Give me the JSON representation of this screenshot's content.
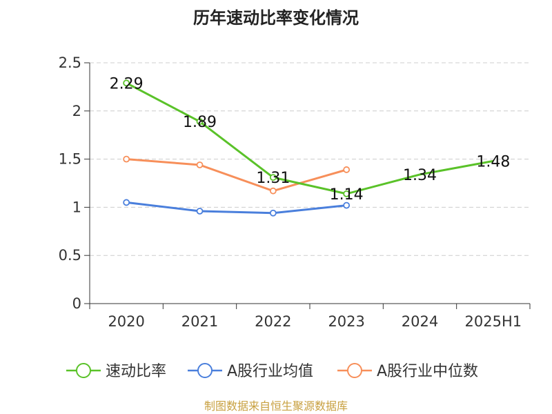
{
  "chart_data": {
    "type": "line",
    "title": "历年速动比率变化情况",
    "categories": [
      "2020",
      "2021",
      "2022",
      "2023",
      "2024",
      "2025H1"
    ],
    "ylim": [
      0,
      2.5
    ],
    "yticks": [
      "0",
      "0.5",
      "1",
      "1.5",
      "2",
      "2.5"
    ],
    "grid": true,
    "legend_position": "bottom",
    "series": [
      {
        "name": "速动比率",
        "color": "#5ac229",
        "values": [
          2.29,
          1.89,
          1.31,
          1.14,
          1.34,
          1.48
        ],
        "labels": [
          "2.29",
          "1.89",
          "1.31",
          "1.14",
          "1.34",
          "1.48"
        ],
        "markers": [
          true,
          true,
          true,
          true,
          false,
          false
        ]
      },
      {
        "name": "A股行业均值",
        "color": "#4a7fdc",
        "values": [
          1.05,
          0.96,
          0.94,
          1.02,
          null,
          null
        ],
        "markers": [
          true,
          true,
          true,
          true,
          false,
          false
        ]
      },
      {
        "name": "A股行业中位数",
        "color": "#f78f5a",
        "values": [
          1.5,
          1.44,
          1.17,
          1.39,
          null,
          null
        ],
        "markers": [
          true,
          true,
          true,
          true,
          false,
          false
        ]
      }
    ]
  },
  "footer": {
    "source": "制图数据来自恒生聚源数据库"
  }
}
